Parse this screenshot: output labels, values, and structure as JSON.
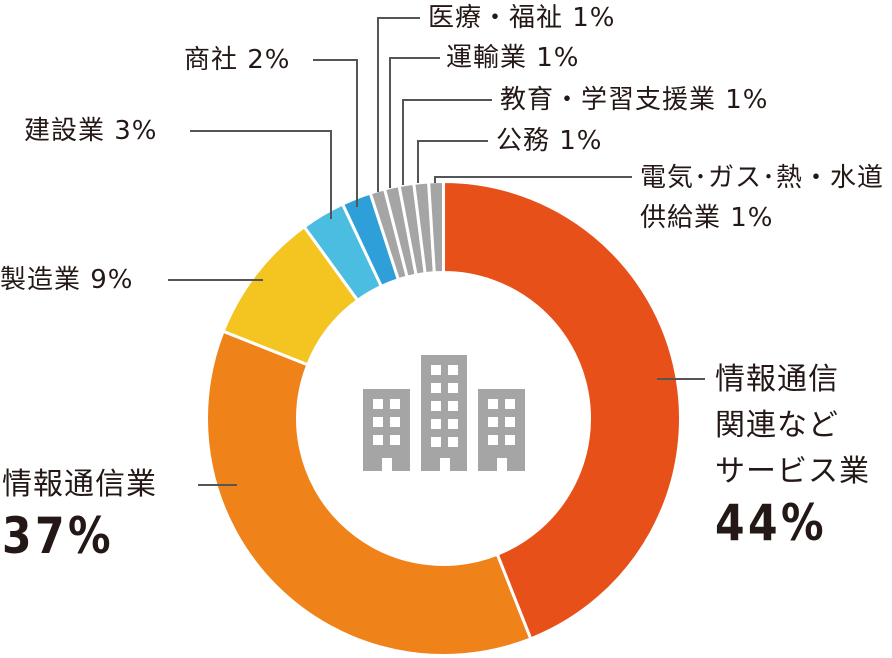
{
  "chart_data": {
    "type": "pie",
    "donut": true,
    "unit": "%",
    "slices": [
      {
        "label": "情報通信関連などサービス業",
        "value": 44,
        "color": "#E8501A",
        "text_lines": [
          "情報通信",
          "関連など",
          "サービス業"
        ],
        "value_text": "44%"
      },
      {
        "label": "情報通信業",
        "value": 37,
        "color": "#EF8219",
        "text_lines": [
          "情報通信業"
        ],
        "value_text": "37%"
      },
      {
        "label": "製造業",
        "value": 9,
        "color": "#F4C520",
        "text_lines": [
          "製造業 9%"
        ]
      },
      {
        "label": "建設業",
        "value": 3,
        "color": "#4BBDE0",
        "text_lines": [
          "建設業 3%"
        ]
      },
      {
        "label": "商社",
        "value": 2,
        "color": "#2E9FD9",
        "text_lines": [
          "商社 2%"
        ]
      },
      {
        "label": "医療・福祉",
        "value": 1,
        "color": "#A5A5A5",
        "text_lines": [
          "医療・福祉 1%"
        ]
      },
      {
        "label": "運輸業",
        "value": 1,
        "color": "#A5A5A5",
        "text_lines": [
          "運輸業 1%"
        ]
      },
      {
        "label": "教育・学習支援業",
        "value": 1,
        "color": "#A5A5A5",
        "text_lines": [
          "教育・学習支援業 1%"
        ]
      },
      {
        "label": "公務",
        "value": 1,
        "color": "#A5A5A5",
        "text_lines": [
          "公務 1%"
        ]
      },
      {
        "label": "電気・ガス・熱・水道供給業",
        "value": 1,
        "color": "#A5A5A5",
        "text_lines": [
          "電気･ガス･熱・水道",
          "供給業 1%"
        ]
      }
    ],
    "center_icon": "buildings-icon",
    "legend": "none"
  }
}
